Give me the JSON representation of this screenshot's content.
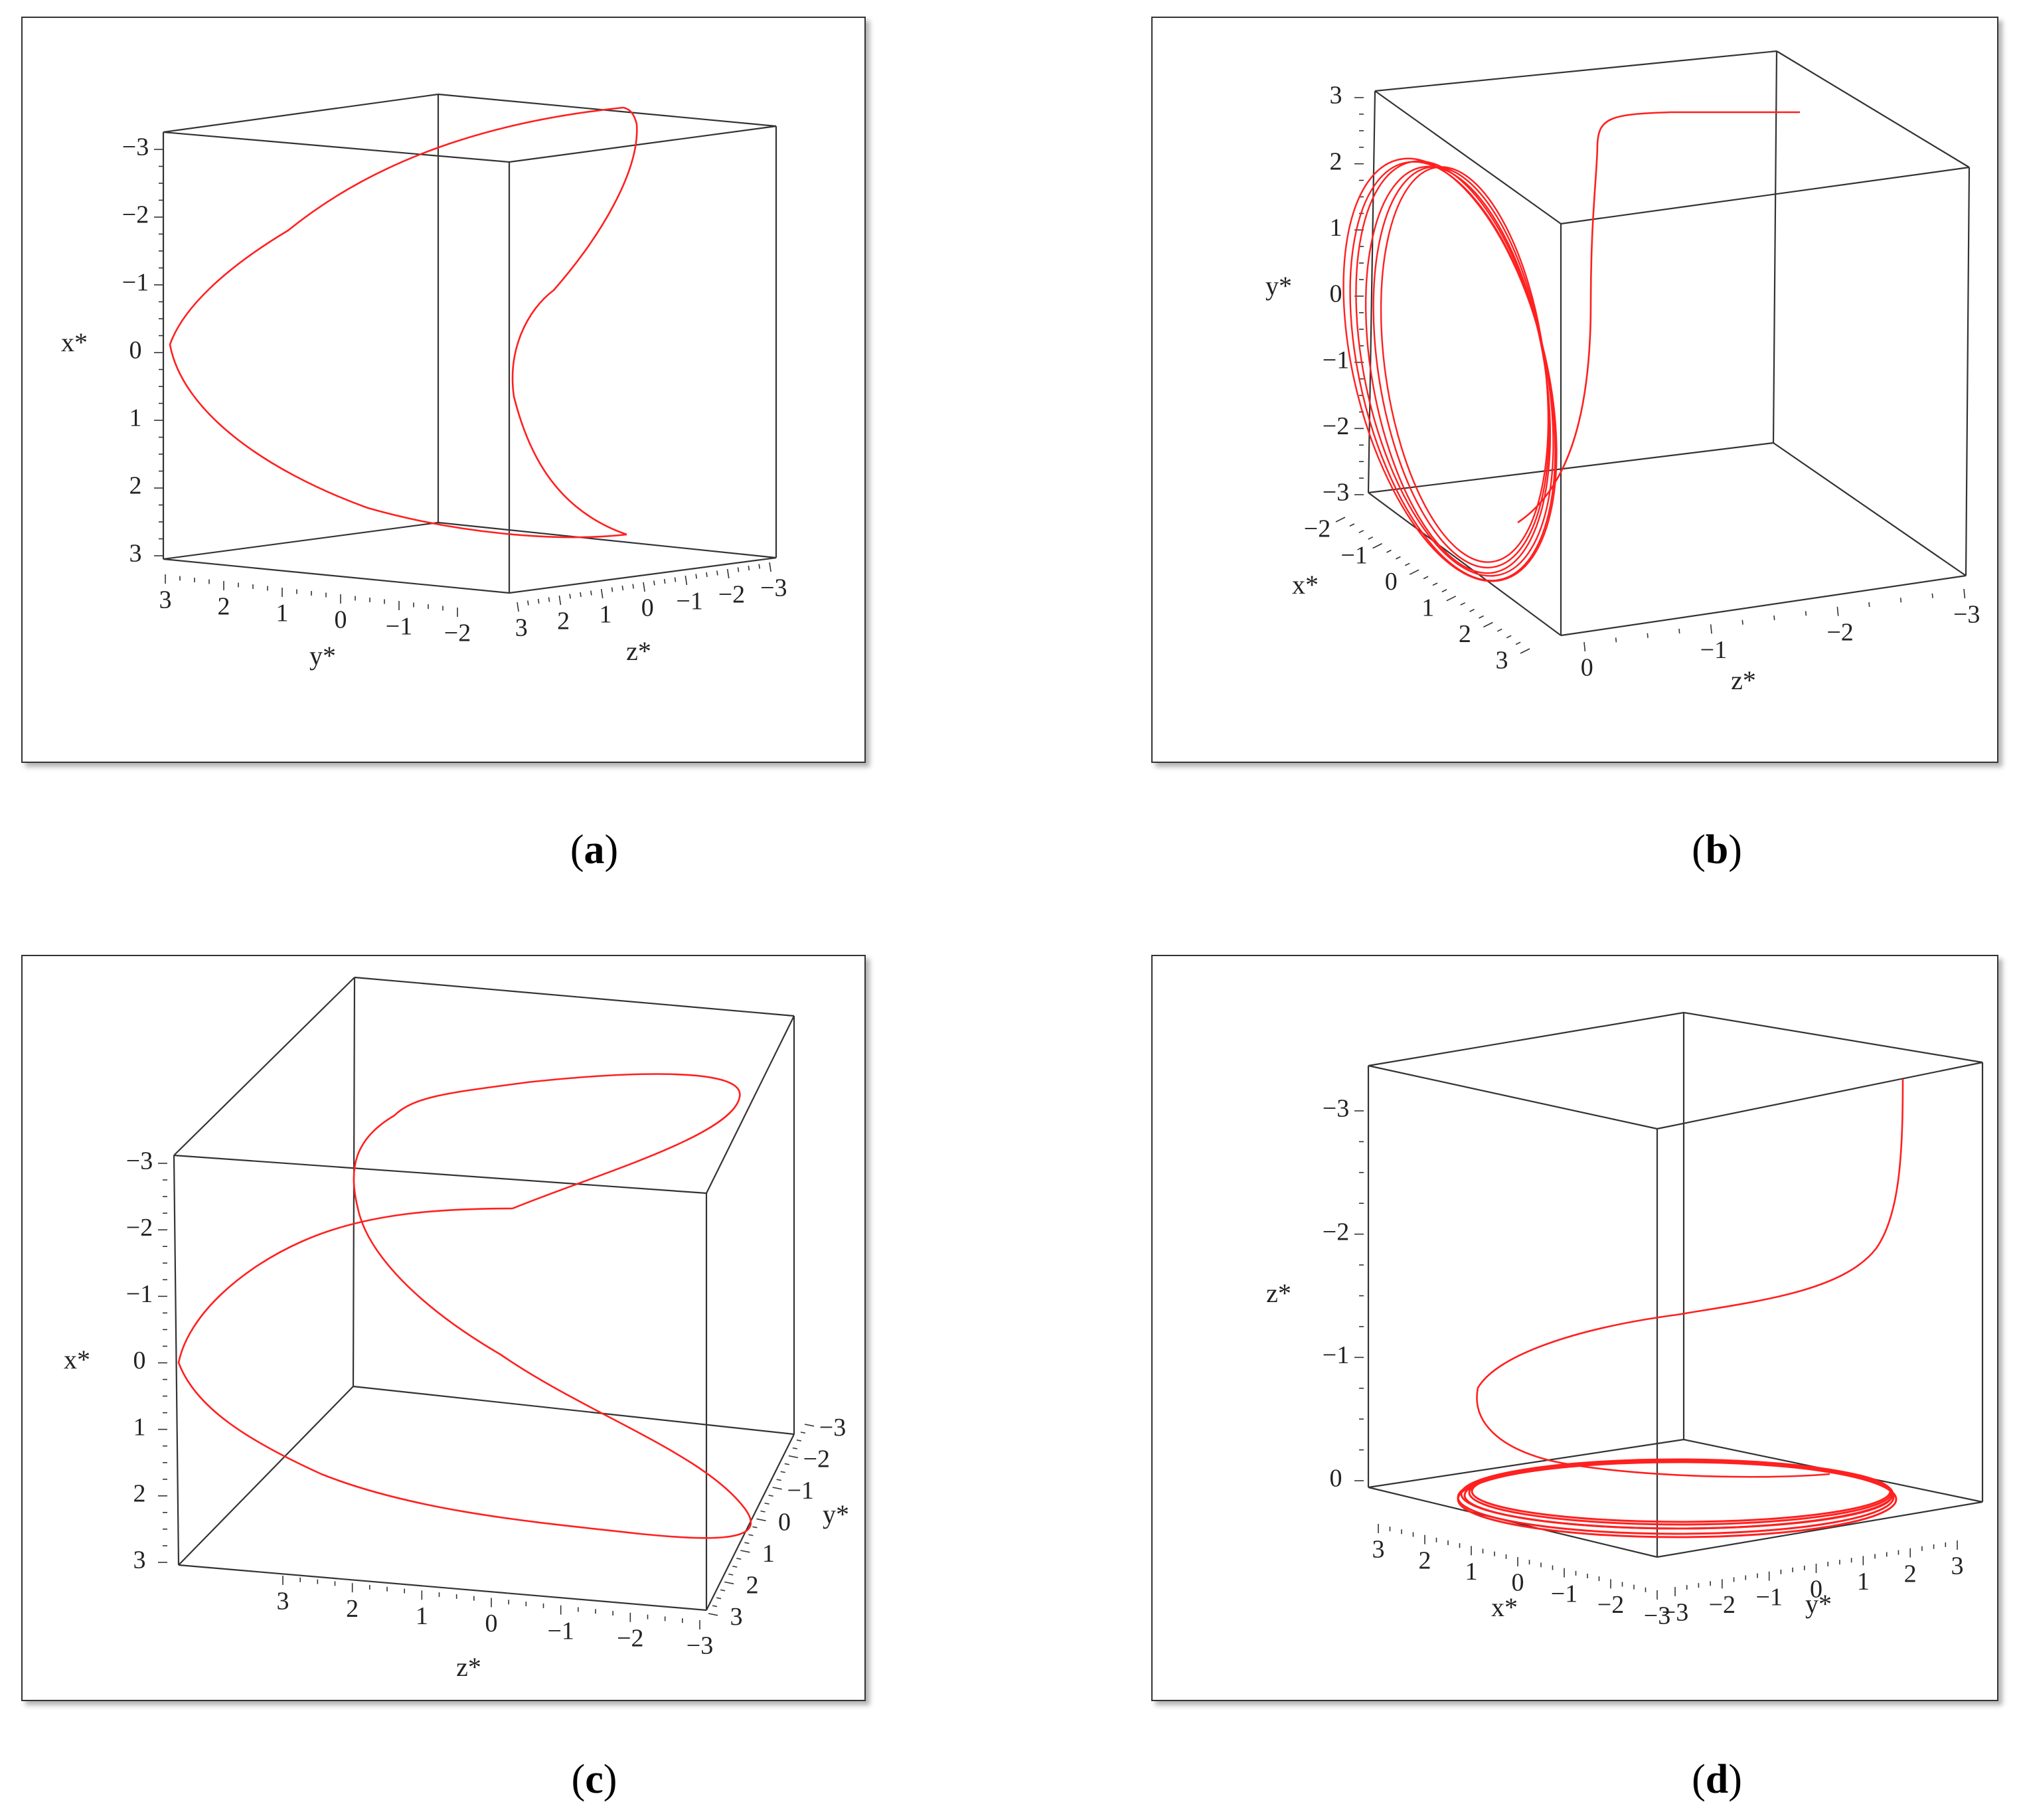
{
  "colors": {
    "curve": "#ff2020",
    "box": "#333333",
    "frame": "#333333"
  },
  "chart_data": [
    {
      "type": "line",
      "caption_letter": "a",
      "xlabel": "y*",
      "ylabel": "x*",
      "zlabel": "z*",
      "vertical_axis": {
        "label": "x*",
        "ticks": [
          "−3",
          "−2",
          "−1",
          "0",
          "1",
          "2",
          "3"
        ],
        "range": [
          -3,
          3
        ],
        "reversed": true
      },
      "bottom_left_axis": {
        "label": "y*",
        "ticks": [
          "3",
          "2",
          "1",
          "0",
          "−1",
          "−2"
        ]
      },
      "bottom_right_axis": {
        "label": "z*",
        "ticks": [
          "3",
          "2",
          "1",
          "0",
          "−1",
          "−2",
          "−3"
        ]
      },
      "grid": false
    },
    {
      "type": "line",
      "caption_letter": "b",
      "vertical_axis": {
        "label": "y*",
        "ticks": [
          "3",
          "2",
          "1",
          "0",
          "−1",
          "−2",
          "−3"
        ],
        "range": [
          -3,
          3
        ]
      },
      "bottom_left_axis": {
        "label": "x*",
        "ticks": [
          "−2",
          "−1",
          "0",
          "1",
          "2",
          "3"
        ]
      },
      "bottom_right_axis": {
        "label": "z*",
        "ticks": [
          "0",
          "−1",
          "−2",
          "−3"
        ]
      },
      "grid": false
    },
    {
      "type": "line",
      "caption_letter": "c",
      "vertical_axis": {
        "label": "x*",
        "ticks": [
          "−3",
          "−2",
          "−1",
          "0",
          "1",
          "2",
          "3"
        ],
        "range": [
          -3,
          3
        ],
        "reversed": true
      },
      "bottom_left_axis": {
        "label": "z*",
        "ticks": [
          "3",
          "2",
          "1",
          "0",
          "−1",
          "−2",
          "−3"
        ]
      },
      "bottom_right_axis": {
        "label": "y*",
        "ticks": [
          "−3",
          "−2",
          "−1",
          "0",
          "1",
          "2",
          "3"
        ]
      },
      "grid": false
    },
    {
      "type": "line",
      "caption_letter": "d",
      "vertical_axis": {
        "label": "z*",
        "ticks": [
          "−3",
          "−2",
          "−1",
          "0"
        ],
        "range": [
          -3,
          0
        ],
        "reversed": true
      },
      "bottom_left_axis": {
        "label": "x*",
        "ticks": [
          "3",
          "2",
          "1",
          "0",
          "−1",
          "−2",
          "−3"
        ]
      },
      "bottom_right_axis": {
        "label": "y*",
        "ticks": [
          "−3",
          "−2",
          "−1",
          "0",
          "1",
          "2",
          "3"
        ]
      },
      "grid": false
    }
  ]
}
